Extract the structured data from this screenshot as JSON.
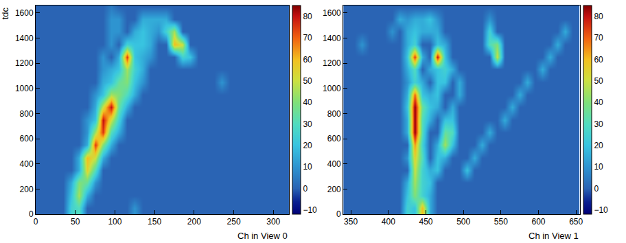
{
  "chart_data": [
    {
      "type": "heatmap",
      "x_title": "Ch in View 0",
      "y_title": "tdc",
      "x": [
        5,
        15,
        25,
        35,
        45,
        55,
        65,
        75,
        85,
        95,
        105,
        115,
        125,
        135,
        145,
        155,
        165,
        175,
        185,
        195,
        205,
        215,
        225,
        235,
        245,
        255,
        265,
        275,
        285,
        295,
        305,
        315
      ],
      "y": [
        50,
        150,
        250,
        350,
        450,
        550,
        650,
        750,
        850,
        950,
        1050,
        1150,
        1250,
        1350,
        1450,
        1550,
        1650
      ],
      "z": [
        [
          0,
          0,
          0,
          0,
          25,
          30,
          0,
          0,
          0,
          0,
          0,
          0,
          10,
          0,
          0,
          0,
          0,
          0,
          0,
          0,
          0,
          0,
          0,
          0,
          0,
          0,
          0,
          0,
          0,
          0,
          0,
          0
        ],
        [
          0,
          0,
          0,
          0,
          20,
          45,
          15,
          0,
          0,
          0,
          0,
          0,
          0,
          0,
          0,
          0,
          0,
          0,
          0,
          0,
          0,
          0,
          0,
          0,
          0,
          0,
          0,
          0,
          0,
          0,
          0,
          0
        ],
        [
          0,
          0,
          0,
          0,
          15,
          40,
          35,
          10,
          0,
          0,
          0,
          0,
          0,
          0,
          0,
          0,
          0,
          0,
          0,
          0,
          0,
          0,
          0,
          0,
          0,
          0,
          0,
          0,
          0,
          0,
          0,
          0
        ],
        [
          0,
          0,
          0,
          0,
          0,
          15,
          55,
          30,
          0,
          0,
          0,
          0,
          0,
          0,
          0,
          0,
          0,
          0,
          0,
          0,
          0,
          0,
          0,
          0,
          0,
          0,
          0,
          0,
          0,
          0,
          0,
          0
        ],
        [
          0,
          0,
          0,
          0,
          0,
          15,
          60,
          50,
          15,
          0,
          0,
          0,
          0,
          0,
          0,
          0,
          0,
          0,
          0,
          0,
          0,
          0,
          0,
          0,
          0,
          0,
          0,
          0,
          0,
          0,
          0,
          0
        ],
        [
          0,
          0,
          0,
          0,
          0,
          0,
          15,
          75,
          40,
          15,
          0,
          0,
          0,
          0,
          0,
          0,
          0,
          0,
          0,
          0,
          0,
          0,
          0,
          0,
          0,
          0,
          0,
          0,
          0,
          0,
          0,
          0
        ],
        [
          0,
          0,
          0,
          0,
          0,
          0,
          10,
          45,
          75,
          30,
          15,
          0,
          0,
          0,
          0,
          0,
          0,
          0,
          0,
          0,
          0,
          0,
          0,
          0,
          0,
          0,
          0,
          0,
          0,
          0,
          0,
          0
        ],
        [
          0,
          0,
          0,
          0,
          0,
          0,
          10,
          20,
          80,
          50,
          25,
          0,
          0,
          0,
          0,
          0,
          0,
          0,
          0,
          0,
          0,
          0,
          0,
          0,
          0,
          0,
          0,
          0,
          0,
          0,
          0,
          0
        ],
        [
          0,
          0,
          0,
          0,
          0,
          0,
          0,
          15,
          50,
          80,
          35,
          15,
          0,
          0,
          0,
          0,
          0,
          0,
          0,
          0,
          0,
          0,
          0,
          0,
          0,
          0,
          0,
          0,
          0,
          0,
          0,
          0
        ],
        [
          0,
          0,
          0,
          0,
          0,
          0,
          0,
          10,
          20,
          45,
          40,
          30,
          15,
          0,
          0,
          0,
          0,
          0,
          0,
          0,
          0,
          0,
          0,
          0,
          0,
          0,
          0,
          0,
          0,
          0,
          0,
          0
        ],
        [
          0,
          0,
          0,
          0,
          0,
          0,
          0,
          0,
          15,
          20,
          35,
          40,
          20,
          10,
          0,
          0,
          0,
          0,
          0,
          0,
          0,
          0,
          0,
          10,
          0,
          0,
          0,
          0,
          0,
          0,
          0,
          0
        ],
        [
          0,
          0,
          0,
          0,
          0,
          0,
          0,
          0,
          10,
          15,
          20,
          45,
          25,
          15,
          0,
          0,
          0,
          0,
          0,
          0,
          0,
          0,
          0,
          0,
          0,
          0,
          0,
          0,
          0,
          0,
          0,
          0
        ],
        [
          0,
          0,
          0,
          0,
          0,
          0,
          0,
          0,
          10,
          0,
          15,
          75,
          20,
          15,
          10,
          0,
          0,
          0,
          25,
          20,
          0,
          0,
          0,
          0,
          0,
          0,
          0,
          0,
          0,
          0,
          0,
          0
        ],
        [
          0,
          0,
          0,
          0,
          0,
          0,
          0,
          0,
          0,
          10,
          0,
          25,
          20,
          20,
          15,
          0,
          0,
          60,
          50,
          0,
          0,
          0,
          0,
          0,
          0,
          0,
          0,
          0,
          0,
          0,
          0,
          0
        ],
        [
          0,
          0,
          0,
          0,
          0,
          0,
          0,
          0,
          0,
          10,
          10,
          0,
          15,
          20,
          15,
          10,
          25,
          45,
          0,
          0,
          0,
          0,
          0,
          0,
          0,
          0,
          0,
          0,
          0,
          0,
          0,
          0
        ],
        [
          0,
          0,
          0,
          0,
          0,
          0,
          0,
          0,
          0,
          10,
          10,
          0,
          0,
          15,
          15,
          15,
          15,
          0,
          0,
          0,
          0,
          0,
          0,
          0,
          0,
          0,
          0,
          0,
          0,
          0,
          0,
          0
        ],
        [
          0,
          0,
          0,
          0,
          0,
          0,
          0,
          0,
          0,
          5,
          0,
          0,
          0,
          0,
          0,
          0,
          0,
          0,
          0,
          0,
          0,
          0,
          0,
          0,
          0,
          0,
          0,
          0,
          0,
          0,
          0,
          0
        ]
      ],
      "xlim": [
        0,
        320
      ],
      "ylim": [
        0,
        1660
      ],
      "xticks": [
        0,
        50,
        100,
        150,
        200,
        250,
        300
      ],
      "yticks": [
        0,
        200,
        400,
        600,
        800,
        1000,
        1200,
        1400,
        1600
      ],
      "zlim": [
        -12,
        85
      ],
      "zticks": [
        -10,
        0,
        10,
        20,
        30,
        40,
        50,
        60,
        70,
        80
      ]
    },
    {
      "type": "heatmap",
      "x_title": "Ch in View 1",
      "x": [
        345,
        355,
        365,
        375,
        385,
        395,
        405,
        415,
        425,
        435,
        445,
        455,
        465,
        475,
        485,
        495,
        505,
        515,
        525,
        535,
        545,
        555,
        565,
        575,
        585,
        595,
        605,
        615,
        625,
        635,
        645,
        655
      ],
      "y": [
        50,
        150,
        250,
        350,
        450,
        550,
        650,
        750,
        850,
        950,
        1050,
        1150,
        1250,
        1350,
        1450,
        1550,
        1650
      ],
      "z": [
        [
          0,
          0,
          0,
          0,
          0,
          0,
          0,
          0,
          25,
          20,
          60,
          15,
          0,
          0,
          0,
          0,
          0,
          0,
          0,
          0,
          0,
          0,
          0,
          0,
          0,
          0,
          0,
          0,
          0,
          0,
          0,
          0
        ],
        [
          0,
          0,
          0,
          0,
          0,
          0,
          0,
          0,
          20,
          40,
          25,
          15,
          0,
          0,
          0,
          0,
          0,
          0,
          0,
          0,
          0,
          0,
          0,
          0,
          0,
          0,
          0,
          0,
          0,
          0,
          0,
          0
        ],
        [
          0,
          0,
          0,
          0,
          0,
          0,
          0,
          0,
          15,
          45,
          25,
          20,
          0,
          0,
          0,
          0,
          0,
          0,
          0,
          0,
          0,
          0,
          0,
          0,
          0,
          0,
          0,
          0,
          0,
          0,
          0,
          0
        ],
        [
          0,
          0,
          0,
          0,
          0,
          0,
          0,
          0,
          0,
          50,
          25,
          15,
          20,
          0,
          0,
          0,
          20,
          0,
          0,
          0,
          0,
          0,
          0,
          0,
          0,
          0,
          0,
          0,
          0,
          0,
          0,
          0
        ],
        [
          0,
          0,
          0,
          0,
          0,
          0,
          0,
          0,
          10,
          55,
          30,
          0,
          20,
          15,
          0,
          0,
          0,
          15,
          0,
          0,
          0,
          0,
          0,
          0,
          0,
          0,
          0,
          0,
          0,
          0,
          0,
          0
        ],
        [
          0,
          0,
          0,
          0,
          0,
          0,
          0,
          0,
          0,
          65,
          25,
          0,
          15,
          45,
          20,
          0,
          0,
          0,
          15,
          0,
          0,
          0,
          0,
          0,
          0,
          0,
          0,
          0,
          0,
          0,
          0,
          0
        ],
        [
          0,
          0,
          0,
          0,
          0,
          0,
          0,
          0,
          15,
          85,
          30,
          0,
          0,
          35,
          30,
          0,
          0,
          0,
          0,
          15,
          0,
          0,
          0,
          0,
          0,
          0,
          0,
          0,
          0,
          0,
          0,
          0
        ],
        [
          0,
          0,
          0,
          0,
          0,
          0,
          0,
          0,
          15,
          85,
          30,
          15,
          0,
          20,
          20,
          0,
          0,
          0,
          0,
          0,
          0,
          15,
          0,
          0,
          0,
          0,
          0,
          0,
          0,
          0,
          0,
          0
        ],
        [
          0,
          0,
          0,
          0,
          0,
          0,
          0,
          0,
          20,
          85,
          35,
          20,
          15,
          0,
          15,
          0,
          0,
          0,
          0,
          0,
          0,
          0,
          15,
          0,
          0,
          0,
          0,
          0,
          0,
          0,
          0,
          0
        ],
        [
          0,
          0,
          0,
          0,
          0,
          0,
          0,
          0,
          15,
          70,
          20,
          15,
          20,
          0,
          0,
          15,
          0,
          0,
          0,
          0,
          0,
          0,
          0,
          15,
          0,
          0,
          0,
          0,
          0,
          0,
          0,
          0
        ],
        [
          0,
          0,
          0,
          0,
          0,
          0,
          0,
          0,
          10,
          25,
          15,
          0,
          20,
          20,
          0,
          15,
          0,
          0,
          0,
          0,
          0,
          0,
          0,
          0,
          15,
          0,
          0,
          0,
          0,
          0,
          0,
          0
        ],
        [
          0,
          0,
          0,
          0,
          0,
          0,
          0,
          0,
          15,
          30,
          0,
          15,
          20,
          25,
          15,
          0,
          0,
          0,
          0,
          0,
          0,
          0,
          0,
          0,
          0,
          0,
          15,
          0,
          0,
          0,
          0,
          0
        ],
        [
          0,
          0,
          0,
          0,
          0,
          0,
          0,
          0,
          20,
          75,
          15,
          0,
          80,
          20,
          0,
          0,
          0,
          0,
          0,
          0,
          50,
          0,
          0,
          0,
          0,
          0,
          0,
          15,
          0,
          0,
          0,
          0
        ],
        [
          0,
          0,
          10,
          0,
          0,
          0,
          0,
          0,
          15,
          25,
          0,
          0,
          20,
          15,
          0,
          0,
          0,
          0,
          0,
          30,
          40,
          0,
          0,
          0,
          0,
          0,
          0,
          0,
          15,
          0,
          0,
          0
        ],
        [
          0,
          0,
          0,
          0,
          0,
          0,
          10,
          0,
          15,
          20,
          15,
          15,
          15,
          0,
          0,
          0,
          0,
          0,
          0,
          25,
          0,
          0,
          0,
          0,
          0,
          0,
          0,
          0,
          0,
          15,
          0,
          0
        ],
        [
          0,
          0,
          0,
          0,
          0,
          0,
          0,
          15,
          10,
          15,
          15,
          20,
          10,
          0,
          0,
          0,
          0,
          0,
          0,
          10,
          0,
          0,
          0,
          0,
          0,
          0,
          0,
          0,
          0,
          0,
          0,
          0
        ],
        [
          0,
          0,
          0,
          0,
          0,
          0,
          0,
          0,
          0,
          0,
          0,
          0,
          0,
          0,
          0,
          0,
          0,
          0,
          0,
          0,
          0,
          0,
          0,
          0,
          0,
          0,
          0,
          0,
          0,
          0,
          0,
          0
        ]
      ],
      "xlim": [
        340,
        655
      ],
      "ylim": [
        0,
        1660
      ],
      "xticks": [
        350,
        400,
        450,
        500,
        550,
        600,
        650
      ],
      "yticks": [
        0,
        200,
        400,
        600,
        800,
        1000,
        1200,
        1400,
        1600
      ],
      "zlim": [
        -12,
        85
      ],
      "zticks": [
        -10,
        0,
        10,
        20,
        30,
        40,
        50,
        60,
        70,
        80
      ]
    }
  ]
}
